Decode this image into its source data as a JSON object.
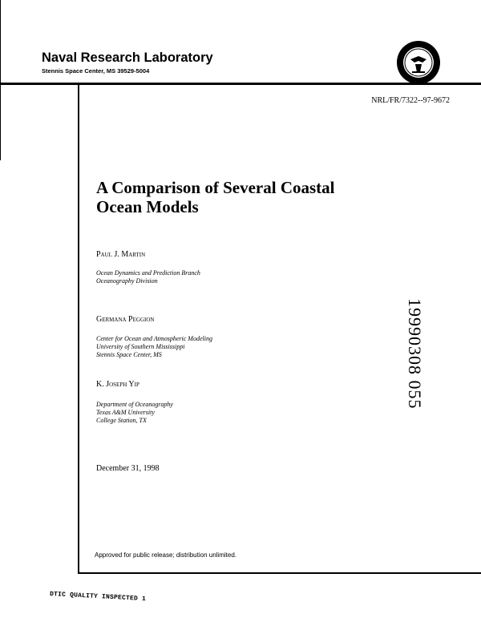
{
  "header": {
    "organization": "Naval Research Laboratory",
    "address": "Stennis Space Center, MS 39529-5004",
    "seal_icon": "us-navy-seal"
  },
  "report_number": "NRL/FR/7322--97-9672",
  "title_lines": [
    "A Comparison of Several Coastal",
    "Ocean Models"
  ],
  "authors": [
    {
      "name": "Paul J. Martin",
      "affiliation": [
        "Ocean Dynamics and Prediction Branch",
        "Oceanography Division"
      ]
    },
    {
      "name": "Germana Peggion",
      "affiliation": [
        "Center for Ocean and Atmospheric Modeling",
        "University of Southern Mississippi",
        "Stennis Space Center, MS"
      ]
    },
    {
      "name": "K. Joseph Yip",
      "affiliation": [
        "Department of Oceanography",
        "Texas A&M University",
        "College Station, TX"
      ]
    }
  ],
  "date": "December 31, 1998",
  "accession_number": "19990308 055",
  "distribution": "Approved for public release; distribution unlimited.",
  "stamp": "DTIC QUALITY INSPECTED 1"
}
